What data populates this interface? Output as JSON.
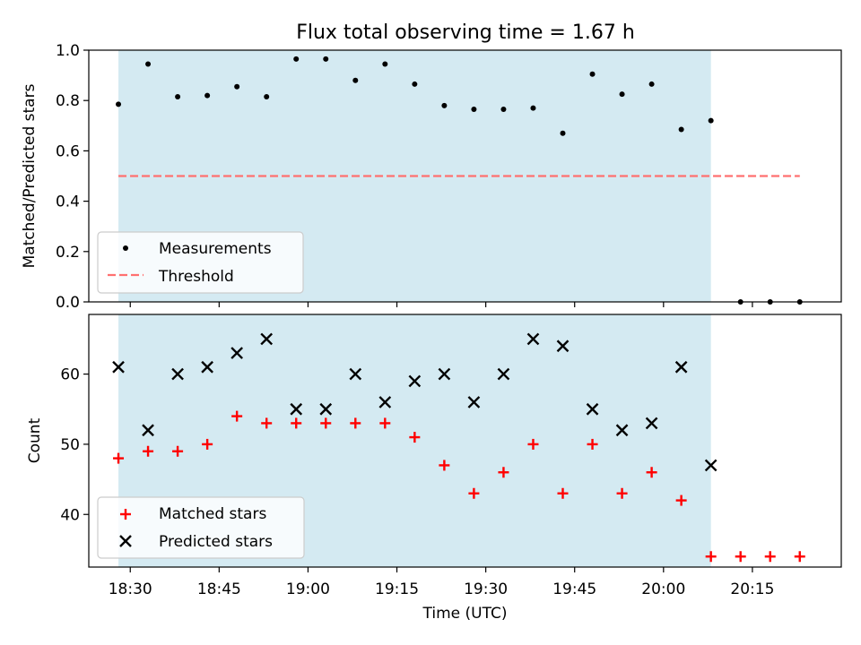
{
  "chart_data": [
    {
      "type": "scatter",
      "title": "Flux total observing time = 1.67 h",
      "xlabel": "",
      "ylabel": "Matched/Predicted stars",
      "ylim": [
        0,
        1.0
      ],
      "yticks": [
        "0.0",
        "0.2",
        "0.4",
        "0.6",
        "0.8",
        "1.0"
      ],
      "ytick_values": [
        0,
        0.2,
        0.4,
        0.6,
        0.8,
        1.0
      ],
      "legend_position": "lower-left",
      "observing_window": [
        "18:28",
        "20:08"
      ],
      "threshold": {
        "name": "Threshold",
        "value": 0.5,
        "x_range": [
          "18:28",
          "20:23"
        ],
        "color": "#ff7070"
      },
      "series": [
        {
          "name": "Measurements",
          "color": "#000000",
          "x": [
            "18:28",
            "18:33",
            "18:38",
            "18:43",
            "18:48",
            "18:53",
            "18:58",
            "19:03",
            "19:08",
            "19:13",
            "19:18",
            "19:23",
            "19:28",
            "19:33",
            "19:38",
            "19:43",
            "19:48",
            "19:53",
            "19:58",
            "20:03",
            "20:08",
            "20:13",
            "20:18",
            "20:23"
          ],
          "y": [
            0.785,
            0.945,
            0.815,
            0.82,
            0.855,
            0.815,
            0.965,
            0.965,
            0.88,
            0.945,
            0.865,
            0.78,
            0.765,
            0.765,
            0.77,
            0.67,
            0.905,
            0.825,
            0.865,
            0.685,
            0.72,
            0.0,
            0.0,
            0.0
          ]
        }
      ]
    },
    {
      "type": "scatter",
      "title": "",
      "xlabel": "Time (UTC)",
      "ylabel": "Count",
      "ylim": [
        32.5,
        68.5
      ],
      "yticks": [
        "40",
        "50",
        "60"
      ],
      "ytick_values": [
        40,
        50,
        60
      ],
      "xlim": [
        "18:23",
        "20:30"
      ],
      "xticks": [
        "18:30",
        "18:45",
        "19:00",
        "19:15",
        "19:30",
        "19:45",
        "20:00",
        "20:15"
      ],
      "legend_position": "lower-left",
      "observing_window": [
        "18:28",
        "20:08"
      ],
      "series": [
        {
          "name": "Matched stars",
          "marker": "plus",
          "color": "#ff0000",
          "x": [
            "18:28",
            "18:33",
            "18:38",
            "18:43",
            "18:48",
            "18:53",
            "18:58",
            "19:03",
            "19:08",
            "19:13",
            "19:18",
            "19:23",
            "19:28",
            "19:33",
            "19:38",
            "19:43",
            "19:48",
            "19:53",
            "19:58",
            "20:03",
            "20:08",
            "20:13",
            "20:18",
            "20:23"
          ],
          "y": [
            48,
            49,
            49,
            50,
            54,
            53,
            53,
            53,
            53,
            53,
            51,
            47,
            43,
            46,
            50,
            43,
            50,
            43,
            46,
            42,
            34,
            34,
            34,
            34
          ]
        },
        {
          "name": "Predicted stars",
          "marker": "x",
          "color": "#000000",
          "x": [
            "18:28",
            "18:33",
            "18:38",
            "18:43",
            "18:48",
            "18:53",
            "18:58",
            "19:03",
            "19:08",
            "19:13",
            "19:18",
            "19:23",
            "19:28",
            "19:33",
            "19:38",
            "19:43",
            "19:48",
            "19:53",
            "19:58",
            "20:03",
            "20:08"
          ],
          "y": [
            61,
            52,
            60,
            61,
            63,
            65,
            55,
            55,
            60,
            56,
            59,
            60,
            56,
            60,
            65,
            64,
            55,
            52,
            53,
            61,
            47
          ]
        }
      ]
    }
  ],
  "colors": {
    "window_fill": "#add8e6",
    "axes": "#000000"
  }
}
